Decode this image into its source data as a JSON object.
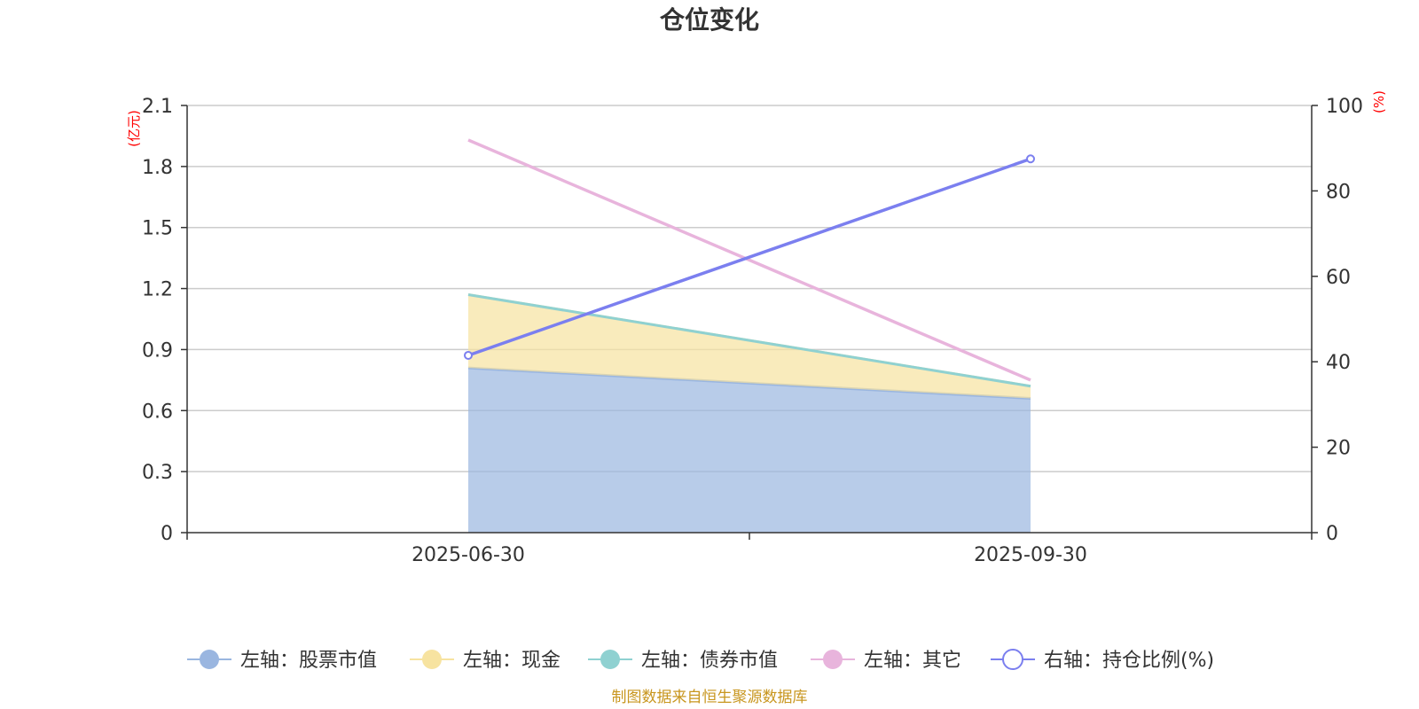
{
  "chart_data": {
    "type": "area",
    "title": "仓位变化",
    "categories": [
      "2025-06-30",
      "2025-09-30"
    ],
    "left_axis": {
      "unit": "(亿元)",
      "ylim": [
        0,
        2.1
      ],
      "ticks": [
        "0",
        "0.3",
        "0.6",
        "0.9",
        "1.2",
        "1.5",
        "1.8",
        "2.1"
      ]
    },
    "right_axis": {
      "unit": "(%)",
      "ylim": [
        0,
        100
      ],
      "ticks": [
        "0",
        "20",
        "40",
        "60",
        "80",
        "100"
      ]
    },
    "series": [
      {
        "name": "左轴：股票市值",
        "axis": "left",
        "type": "area",
        "stack": true,
        "color": "#9ab6e0",
        "values": [
          0.81,
          0.66
        ]
      },
      {
        "name": "左轴：现金",
        "axis": "left",
        "type": "area",
        "stack": true,
        "color": "#f7e3a0",
        "values": [
          0.36,
          0.06
        ]
      },
      {
        "name": "左轴：债券市值",
        "axis": "left",
        "type": "area",
        "stack": true,
        "color": "#8fd1d1",
        "values": [
          0,
          0
        ]
      },
      {
        "name": "左轴：其它",
        "axis": "left",
        "type": "line",
        "color": "#e8b4dc",
        "values": [
          1.93,
          0.75
        ]
      },
      {
        "name": "右轴：持仓比例(%)",
        "axis": "right",
        "type": "line",
        "color": "#7b7fef",
        "values": [
          41.5,
          87.5
        ]
      }
    ],
    "legend_position": "bottom",
    "source": "制图数据来自恒生聚源数据库"
  }
}
